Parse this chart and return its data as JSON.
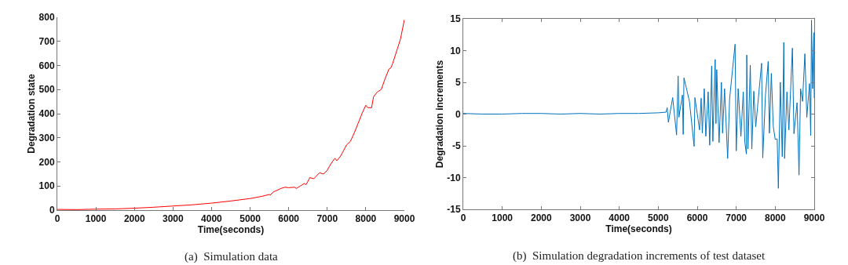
{
  "chart_data": [
    {
      "type": "line",
      "xlabel": "Time(seconds)",
      "ylabel": "Degradation state",
      "annotations": [
        "(a)  Simulation data"
      ],
      "xlim": [
        0,
        9000
      ],
      "ylim": [
        0,
        800
      ],
      "xticks": [
        0,
        1000,
        2000,
        3000,
        4000,
        5000,
        6000,
        7000,
        8000,
        9000
      ],
      "yticks": [
        0,
        100,
        200,
        300,
        400,
        500,
        600,
        700,
        800
      ],
      "grid": false,
      "series": [
        {
          "color": "#ff0000",
          "x": [
            0,
            500,
            1000,
            1500,
            2000,
            2500,
            3000,
            3500,
            4000,
            4500,
            5000,
            5300,
            5500,
            5520,
            5600,
            5800,
            5900,
            6000,
            6150,
            6200,
            6300,
            6400,
            6450,
            6500,
            6550,
            6650,
            6800,
            6900,
            7000,
            7050,
            7150,
            7200,
            7250,
            7350,
            7400,
            7500,
            7600,
            7700,
            7800,
            7900,
            8000,
            8050,
            8150,
            8200,
            8300,
            8400,
            8500,
            8600,
            8650,
            8700,
            8800,
            8900,
            9000
          ],
          "values": [
            3,
            2,
            4,
            5,
            8,
            12,
            17,
            22,
            29,
            38,
            48,
            57,
            65,
            62,
            75,
            90,
            95,
            93,
            95,
            90,
            100,
            110,
            106,
            120,
            135,
            130,
            155,
            150,
            165,
            180,
            205,
            215,
            205,
            225,
            240,
            270,
            285,
            320,
            360,
            400,
            435,
            425,
            425,
            470,
            490,
            500,
            545,
            585,
            590,
            610,
            660,
            710,
            790
          ]
        }
      ]
    },
    {
      "type": "line",
      "xlabel": "Time(seconds)",
      "ylabel": "Degradation increments",
      "annotations": [
        "(b)  Simulation degradation increments of test dataset"
      ],
      "xlim": [
        0,
        9000
      ],
      "ylim": [
        -15,
        15
      ],
      "xticks": [
        0,
        1000,
        2000,
        3000,
        4000,
        5000,
        6000,
        7000,
        8000,
        9000
      ],
      "yticks": [
        -15,
        -10,
        -5,
        0,
        5,
        10,
        15
      ],
      "grid": false,
      "series": [
        {
          "color": "#0072bd",
          "x": [
            0,
            500,
            1000,
            1500,
            2000,
            2500,
            3000,
            3500,
            4000,
            4500,
            5000,
            5200,
            5230,
            5260,
            5370,
            5470,
            5510,
            5530,
            5620,
            5640,
            5660,
            5800,
            5920,
            5940,
            6060,
            6100,
            6130,
            6180,
            6220,
            6280,
            6320,
            6370,
            6400,
            6460,
            6480,
            6500,
            6560,
            6620,
            6650,
            6700,
            6780,
            6830,
            6970,
            7000,
            7050,
            7120,
            7180,
            7220,
            7260,
            7270,
            7300,
            7360,
            7400,
            7450,
            7500,
            7560,
            7650,
            7680,
            7750,
            7820,
            7850,
            7900,
            7950,
            8000,
            8050,
            8080,
            8130,
            8180,
            8220,
            8240,
            8300,
            8350,
            8440,
            8480,
            8560,
            8610,
            8650,
            8700,
            8760,
            8810,
            8880,
            8910,
            8930,
            8960,
            8990,
            9000
          ],
          "values": [
            0.1,
            0,
            0,
            0.1,
            0.1,
            0,
            0.1,
            0,
            0.1,
            0.1,
            0.2,
            0.3,
            1,
            -1.3,
            2.6,
            -3.3,
            6,
            -0.5,
            3,
            -3.2,
            5.7,
            2,
            -5.1,
            2.6,
            -2.5,
            2.5,
            -3,
            4,
            -3.5,
            3.5,
            -4.9,
            7.6,
            -4.3,
            8.6,
            -1.5,
            7,
            -4.5,
            5,
            -3,
            4,
            -7,
            2.4,
            11,
            -5.8,
            4,
            -3.5,
            3.5,
            -4.4,
            -6.3,
            9.3,
            -5.5,
            7.7,
            -5.5,
            3.6,
            -2,
            2,
            8,
            -6.9,
            3,
            8.3,
            -3,
            6.4,
            -2,
            -4,
            -3.9,
            -11.7,
            5,
            -6.7,
            11.3,
            -7,
            3.5,
            -2.5,
            10.4,
            -3.1,
            1.8,
            -9.6,
            4,
            2,
            9.5,
            -0.5,
            4.8,
            -3.4,
            14.8,
            4,
            12.8,
            2.5
          ]
        }
      ]
    }
  ]
}
